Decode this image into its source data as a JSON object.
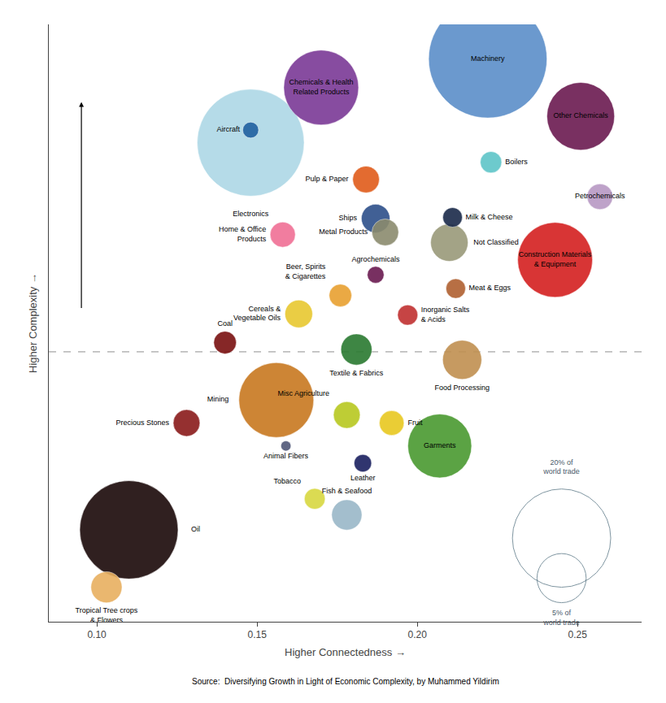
{
  "chart_data": {
    "type": "bubble",
    "xlabel": "Higher Connectedness →",
    "ylabel": "Higher Complexity →",
    "source": "Source:  Diversifying Growth in Light of Economic Complexity, by Muhammed Yildirim",
    "xlim": [
      0.085,
      0.27
    ],
    "ylim": [
      -2.35,
      2.85
    ],
    "xticks": [
      {
        "value": 0.1,
        "label": "0.10"
      },
      0.15,
      {
        "value": 0.2,
        "label": "0.20"
      },
      0.25
    ],
    "yticks": [],
    "tick_labels": "x",
    "grid": false,
    "marker": "circle",
    "hlines": [
      {
        "y": 0.0,
        "line_style": "dashed",
        "color": "gray"
      }
    ],
    "labels": [
      "Machinery",
      "Electronics",
      "Oil",
      "Chemicals & Health\nRelated Products",
      "Construction Materials\n& Equipment",
      "Mining",
      "Other Chemicals",
      "Garments",
      "Food Processing",
      "Not Classified",
      "Textile & Fabrics",
      "Tropical Tree crops\n& Flowers",
      "Fish & Seafood",
      "Ships",
      "Cereals &\nVegetable Oils",
      "Pulp & Paper",
      "Metal Products",
      "Precious Stones",
      "Misc Agriculture",
      "Petrochemicals",
      "Home & Office\nProducts",
      "Fruit",
      "Beer, Spirits\n& Cigarettes",
      "Coal",
      "Boilers",
      "Tobacco",
      "Inorganic Salts\n& Acids",
      "Milk & Cheese",
      "Meat & Eggs",
      "Leather",
      "Agrochemicals",
      "Aircraft",
      "Animal Fibers"
    ],
    "x": [
      0.222,
      0.148,
      0.11,
      0.17,
      0.243,
      0.156,
      0.251,
      0.207,
      0.214,
      0.21,
      0.181,
      0.103,
      0.178,
      0.187,
      0.163,
      0.184,
      0.19,
      0.128,
      0.178,
      0.257,
      0.158,
      0.192,
      0.176,
      0.14,
      0.223,
      0.168,
      0.197,
      0.211,
      0.212,
      0.183,
      0.187,
      0.148,
      0.159
    ],
    "values": [
      2.55,
      1.82,
      -1.55,
      2.3,
      0.8,
      -0.42,
      2.05,
      -0.82,
      -0.07,
      0.95,
      0.02,
      -2.05,
      -1.42,
      1.16,
      0.33,
      1.5,
      1.04,
      -0.62,
      -0.55,
      1.35,
      1.02,
      -0.62,
      0.49,
      0.08,
      1.65,
      -1.28,
      0.32,
      1.17,
      0.55,
      -0.97,
      0.67,
      1.93,
      -0.82
    ],
    "sizes": [
      5500,
      4500,
      3800,
      2200,
      2200,
      2200,
      1800,
      1600,
      600,
      550,
      380,
      380,
      360,
      320,
      300,
      280,
      280,
      280,
      280,
      260,
      250,
      240,
      200,
      200,
      180,
      170,
      160,
      150,
      150,
      120,
      110,
      100,
      40
    ],
    "colors": [
      "#5b8ec9",
      "#add8e6",
      "#1a0808",
      "#7b3996",
      "#d42020",
      "#c87820",
      "#6b1a50",
      "#4a9a30",
      "#c09050",
      "#9a9a7a",
      "#2a7a30",
      "#e8b060",
      "#9ab8c8",
      "#2d4f8a",
      "#e8c830",
      "#e05c1a",
      "#8b8b6e",
      "#8a1a1a",
      "#b8c820",
      "#b899c4",
      "#f07095",
      "#e8c820",
      "#e8a030",
      "#7a1010",
      "#5ec5c8",
      "#d8d840",
      "#c03030",
      "#1a2a4a",
      "#b06030",
      "#1a2060",
      "#6a1a50",
      "#2060a0",
      "#505878"
    ],
    "size_key": [
      {
        "size": 3800,
        "label": "20% of\nworld trade",
        "color": "#4a6a7a"
      },
      {
        "size": 950,
        "label": "5% of\nworld trade",
        "color": "#4a6a7a"
      }
    ]
  }
}
